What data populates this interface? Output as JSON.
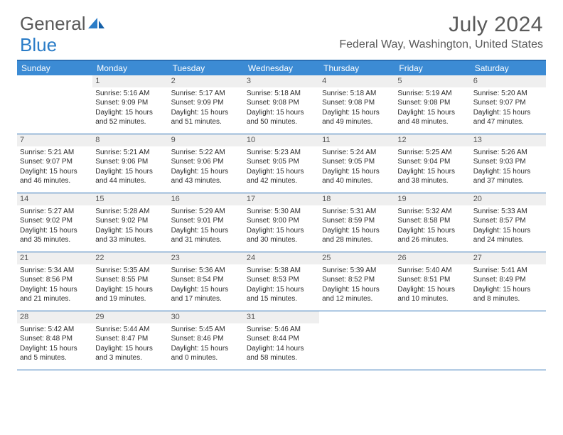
{
  "logo": {
    "text1": "General",
    "text2": "Blue",
    "accent_color": "#2a7cc7",
    "text_color": "#5a5a5a"
  },
  "title": "July 2024",
  "location": "Federal Way, Washington, United States",
  "colors": {
    "header_bg": "#3c8bd4",
    "header_text": "#ffffff",
    "border": "#2a6fb5",
    "daynum_bg": "#efefef",
    "daynum_text": "#555555",
    "body_text": "#2b2b2b"
  },
  "weekdays": [
    "Sunday",
    "Monday",
    "Tuesday",
    "Wednesday",
    "Thursday",
    "Friday",
    "Saturday"
  ],
  "weeks": [
    [
      null,
      {
        "n": "1",
        "l": [
          "Sunrise: 5:16 AM",
          "Sunset: 9:09 PM",
          "Daylight: 15 hours",
          "and 52 minutes."
        ]
      },
      {
        "n": "2",
        "l": [
          "Sunrise: 5:17 AM",
          "Sunset: 9:09 PM",
          "Daylight: 15 hours",
          "and 51 minutes."
        ]
      },
      {
        "n": "3",
        "l": [
          "Sunrise: 5:18 AM",
          "Sunset: 9:08 PM",
          "Daylight: 15 hours",
          "and 50 minutes."
        ]
      },
      {
        "n": "4",
        "l": [
          "Sunrise: 5:18 AM",
          "Sunset: 9:08 PM",
          "Daylight: 15 hours",
          "and 49 minutes."
        ]
      },
      {
        "n": "5",
        "l": [
          "Sunrise: 5:19 AM",
          "Sunset: 9:08 PM",
          "Daylight: 15 hours",
          "and 48 minutes."
        ]
      },
      {
        "n": "6",
        "l": [
          "Sunrise: 5:20 AM",
          "Sunset: 9:07 PM",
          "Daylight: 15 hours",
          "and 47 minutes."
        ]
      }
    ],
    [
      {
        "n": "7",
        "l": [
          "Sunrise: 5:21 AM",
          "Sunset: 9:07 PM",
          "Daylight: 15 hours",
          "and 46 minutes."
        ]
      },
      {
        "n": "8",
        "l": [
          "Sunrise: 5:21 AM",
          "Sunset: 9:06 PM",
          "Daylight: 15 hours",
          "and 44 minutes."
        ]
      },
      {
        "n": "9",
        "l": [
          "Sunrise: 5:22 AM",
          "Sunset: 9:06 PM",
          "Daylight: 15 hours",
          "and 43 minutes."
        ]
      },
      {
        "n": "10",
        "l": [
          "Sunrise: 5:23 AM",
          "Sunset: 9:05 PM",
          "Daylight: 15 hours",
          "and 42 minutes."
        ]
      },
      {
        "n": "11",
        "l": [
          "Sunrise: 5:24 AM",
          "Sunset: 9:05 PM",
          "Daylight: 15 hours",
          "and 40 minutes."
        ]
      },
      {
        "n": "12",
        "l": [
          "Sunrise: 5:25 AM",
          "Sunset: 9:04 PM",
          "Daylight: 15 hours",
          "and 38 minutes."
        ]
      },
      {
        "n": "13",
        "l": [
          "Sunrise: 5:26 AM",
          "Sunset: 9:03 PM",
          "Daylight: 15 hours",
          "and 37 minutes."
        ]
      }
    ],
    [
      {
        "n": "14",
        "l": [
          "Sunrise: 5:27 AM",
          "Sunset: 9:02 PM",
          "Daylight: 15 hours",
          "and 35 minutes."
        ]
      },
      {
        "n": "15",
        "l": [
          "Sunrise: 5:28 AM",
          "Sunset: 9:02 PM",
          "Daylight: 15 hours",
          "and 33 minutes."
        ]
      },
      {
        "n": "16",
        "l": [
          "Sunrise: 5:29 AM",
          "Sunset: 9:01 PM",
          "Daylight: 15 hours",
          "and 31 minutes."
        ]
      },
      {
        "n": "17",
        "l": [
          "Sunrise: 5:30 AM",
          "Sunset: 9:00 PM",
          "Daylight: 15 hours",
          "and 30 minutes."
        ]
      },
      {
        "n": "18",
        "l": [
          "Sunrise: 5:31 AM",
          "Sunset: 8:59 PM",
          "Daylight: 15 hours",
          "and 28 minutes."
        ]
      },
      {
        "n": "19",
        "l": [
          "Sunrise: 5:32 AM",
          "Sunset: 8:58 PM",
          "Daylight: 15 hours",
          "and 26 minutes."
        ]
      },
      {
        "n": "20",
        "l": [
          "Sunrise: 5:33 AM",
          "Sunset: 8:57 PM",
          "Daylight: 15 hours",
          "and 24 minutes."
        ]
      }
    ],
    [
      {
        "n": "21",
        "l": [
          "Sunrise: 5:34 AM",
          "Sunset: 8:56 PM",
          "Daylight: 15 hours",
          "and 21 minutes."
        ]
      },
      {
        "n": "22",
        "l": [
          "Sunrise: 5:35 AM",
          "Sunset: 8:55 PM",
          "Daylight: 15 hours",
          "and 19 minutes."
        ]
      },
      {
        "n": "23",
        "l": [
          "Sunrise: 5:36 AM",
          "Sunset: 8:54 PM",
          "Daylight: 15 hours",
          "and 17 minutes."
        ]
      },
      {
        "n": "24",
        "l": [
          "Sunrise: 5:38 AM",
          "Sunset: 8:53 PM",
          "Daylight: 15 hours",
          "and 15 minutes."
        ]
      },
      {
        "n": "25",
        "l": [
          "Sunrise: 5:39 AM",
          "Sunset: 8:52 PM",
          "Daylight: 15 hours",
          "and 12 minutes."
        ]
      },
      {
        "n": "26",
        "l": [
          "Sunrise: 5:40 AM",
          "Sunset: 8:51 PM",
          "Daylight: 15 hours",
          "and 10 minutes."
        ]
      },
      {
        "n": "27",
        "l": [
          "Sunrise: 5:41 AM",
          "Sunset: 8:49 PM",
          "Daylight: 15 hours",
          "and 8 minutes."
        ]
      }
    ],
    [
      {
        "n": "28",
        "l": [
          "Sunrise: 5:42 AM",
          "Sunset: 8:48 PM",
          "Daylight: 15 hours",
          "and 5 minutes."
        ]
      },
      {
        "n": "29",
        "l": [
          "Sunrise: 5:44 AM",
          "Sunset: 8:47 PM",
          "Daylight: 15 hours",
          "and 3 minutes."
        ]
      },
      {
        "n": "30",
        "l": [
          "Sunrise: 5:45 AM",
          "Sunset: 8:46 PM",
          "Daylight: 15 hours",
          "and 0 minutes."
        ]
      },
      {
        "n": "31",
        "l": [
          "Sunrise: 5:46 AM",
          "Sunset: 8:44 PM",
          "Daylight: 14 hours",
          "and 58 minutes."
        ]
      },
      null,
      null,
      null
    ]
  ]
}
